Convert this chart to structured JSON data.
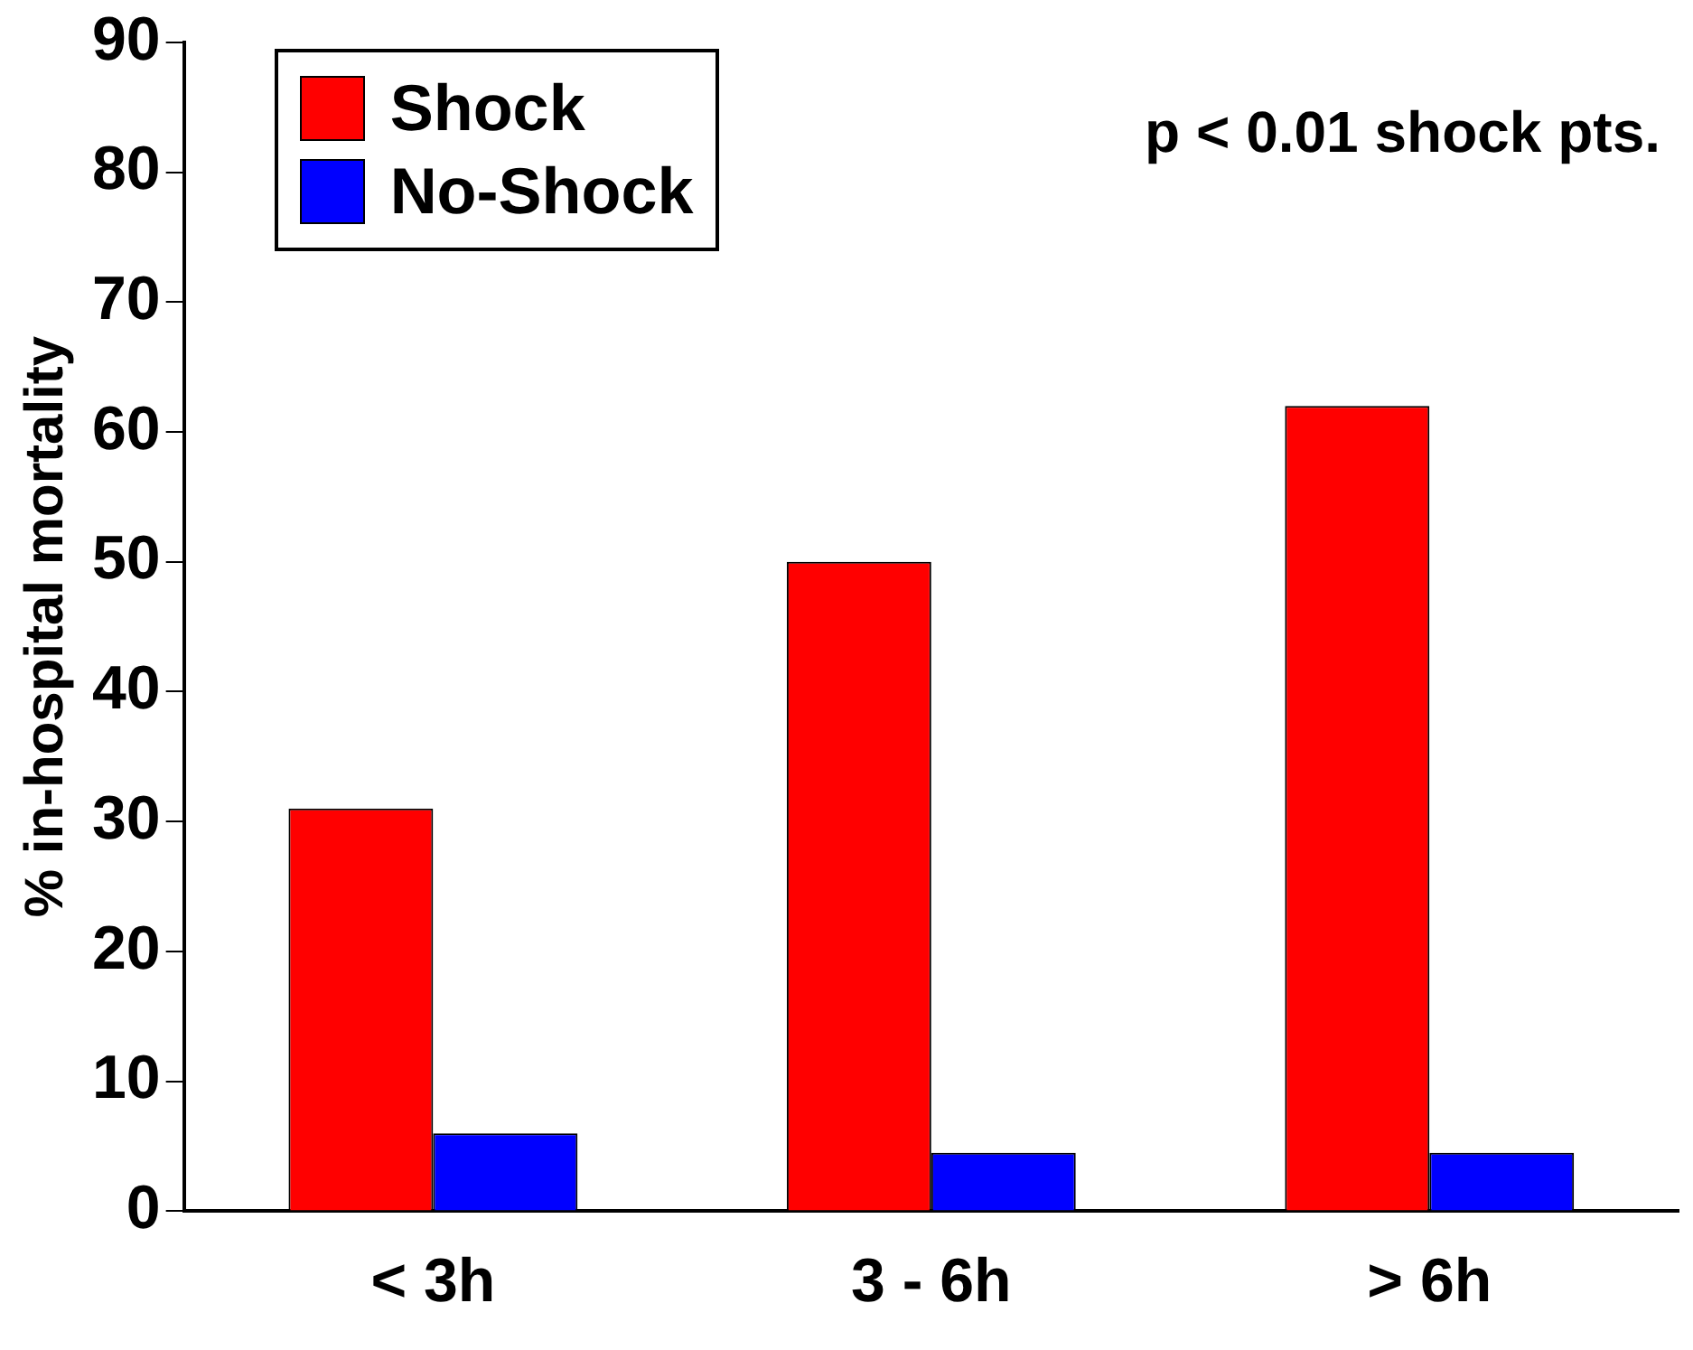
{
  "chart_data": {
    "type": "bar",
    "ylabel": "% in-hospital mortality",
    "categories": [
      "< 3h",
      "3 - 6h",
      "> 6h"
    ],
    "series": [
      {
        "name": "Shock",
        "color": "#ff0000",
        "values": [
          31,
          50,
          62
        ]
      },
      {
        "name": "No-Shock",
        "color": "#0000ff",
        "values": [
          6,
          4.5,
          4.5
        ]
      }
    ],
    "ylim": [
      0,
      90
    ],
    "yticks": [
      0,
      10,
      20,
      30,
      40,
      50,
      60,
      70,
      80,
      90
    ],
    "grid": false,
    "legend": "top left",
    "annotations": [
      "p < 0.01 shock pts."
    ]
  }
}
